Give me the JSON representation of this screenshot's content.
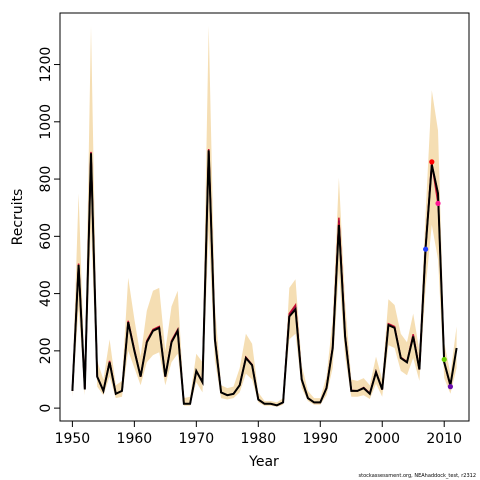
{
  "chart_data": {
    "type": "line",
    "xlabel": "Year",
    "ylabel": "Recruits",
    "credit": "stockassessment.org, NEAhaddock_test, r2312",
    "xlim": [
      1948,
      2014
    ],
    "ylim": [
      -45,
      1380
    ],
    "x_ticks": [
      1950,
      1960,
      1970,
      1980,
      1990,
      2000,
      2010
    ],
    "y_ticks": [
      0,
      200,
      400,
      600,
      800,
      1000,
      1200
    ],
    "grid": false,
    "colors": {
      "band": "#f5deb3",
      "estimate": "#000000",
      "retro": "#c8102e",
      "retro_2": "#8b0a50"
    },
    "years": [
      1950,
      1951,
      1952,
      1953,
      1954,
      1955,
      1956,
      1957,
      1958,
      1959,
      1960,
      1961,
      1962,
      1963,
      1964,
      1965,
      1966,
      1967,
      1968,
      1969,
      1970,
      1971,
      1972,
      1973,
      1974,
      1975,
      1976,
      1977,
      1978,
      1979,
      1980,
      1981,
      1982,
      1983,
      1984,
      1985,
      1986,
      1987,
      1988,
      1989,
      1990,
      1991,
      1992,
      1993,
      1994,
      1995,
      1996,
      1997,
      1998,
      1999,
      2000,
      2001,
      2002,
      2003,
      2004,
      2005,
      2006,
      2007,
      2008,
      2009,
      2010,
      2011,
      2012
    ],
    "estimate": [
      60,
      500,
      65,
      890,
      110,
      60,
      160,
      50,
      60,
      300,
      200,
      110,
      230,
      270,
      280,
      110,
      230,
      270,
      15,
      15,
      130,
      90,
      900,
      240,
      55,
      45,
      50,
      80,
      175,
      150,
      30,
      15,
      15,
      10,
      20,
      320,
      345,
      100,
      35,
      20,
      20,
      70,
      210,
      640,
      250,
      60,
      60,
      70,
      50,
      125,
      65,
      290,
      280,
      175,
      160,
      250,
      135,
      560,
      850,
      750,
      160,
      80,
      210
    ],
    "upper": [
      90,
      750,
      110,
      1335,
      165,
      100,
      240,
      80,
      95,
      455,
      310,
      180,
      340,
      410,
      420,
      200,
      355,
      410,
      35,
      40,
      190,
      160,
      1335,
      360,
      80,
      70,
      75,
      140,
      260,
      225,
      55,
      25,
      25,
      20,
      35,
      420,
      450,
      150,
      60,
      35,
      35,
      110,
      310,
      805,
      370,
      100,
      95,
      105,
      80,
      180,
      100,
      380,
      360,
      260,
      230,
      330,
      200,
      680,
      1110,
      970,
      230,
      120,
      285
    ],
    "lower": [
      40,
      350,
      45,
      630,
      75,
      45,
      110,
      35,
      40,
      200,
      140,
      80,
      160,
      185,
      195,
      80,
      160,
      190,
      8,
      8,
      90,
      55,
      620,
      165,
      35,
      30,
      35,
      55,
      120,
      100,
      20,
      8,
      8,
      5,
      12,
      240,
      260,
      70,
      25,
      12,
      12,
      45,
      140,
      480,
      180,
      40,
      40,
      45,
      32,
      85,
      40,
      220,
      210,
      130,
      115,
      175,
      95,
      420,
      640,
      520,
      105,
      50,
      140
    ],
    "retro_series": [
      {
        "x": [
          1950,
          1951,
          1952,
          1953,
          1954,
          1955,
          1956,
          1957,
          1958,
          1959,
          1960,
          1961,
          1962,
          1963,
          1964,
          1965,
          1966,
          1967,
          1968,
          1969,
          1970,
          1971,
          1972,
          1973,
          1974,
          1975,
          1976,
          1977,
          1978,
          1979,
          1980,
          1981,
          1982,
          1983,
          1984,
          1985,
          1986,
          1987,
          1988,
          1989,
          1990,
          1991,
          1992,
          1993,
          1994,
          1995,
          1996,
          1997,
          1998,
          1999,
          2000,
          2001,
          2002,
          2003,
          2004,
          2005,
          2006,
          2007
        ],
        "y": [
          60,
          505,
          65,
          895,
          110,
          60,
          165,
          50,
          60,
          305,
          205,
          110,
          235,
          275,
          285,
          110,
          235,
          275,
          15,
          15,
          130,
          90,
          905,
          245,
          55,
          45,
          50,
          80,
          178,
          152,
          30,
          15,
          15,
          10,
          20,
          330,
          360,
          100,
          35,
          20,
          20,
          72,
          215,
          665,
          255,
          62,
          60,
          72,
          52,
          128,
          66,
          295,
          285,
          178,
          162,
          258,
          138,
          555
        ],
        "end_color": "#1e3cff"
      },
      {
        "x": [
          1950,
          1951,
          1952,
          1953,
          1954,
          1955,
          1956,
          1957,
          1958,
          1959,
          1960,
          1961,
          1962,
          1963,
          1964,
          1965,
          1966,
          1967,
          1968,
          1969,
          1970,
          1971,
          1972,
          1973,
          1974,
          1975,
          1976,
          1977,
          1978,
          1979,
          1980,
          1981,
          1982,
          1983,
          1984,
          1985,
          1986,
          1987,
          1988,
          1989,
          1990,
          1991,
          1992,
          1993,
          1994,
          1995,
          1996,
          1997,
          1998,
          1999,
          2000,
          2001,
          2002,
          2003,
          2004,
          2005,
          2006,
          2007,
          2008
        ],
        "y": [
          60,
          502,
          65,
          892,
          110,
          60,
          162,
          50,
          60,
          302,
          202,
          110,
          232,
          272,
          282,
          110,
          232,
          272,
          15,
          15,
          130,
          90,
          902,
          242,
          55,
          45,
          50,
          80,
          176,
          151,
          30,
          15,
          15,
          10,
          20,
          325,
          352,
          100,
          35,
          20,
          20,
          71,
          212,
          655,
          252,
          61,
          60,
          71,
          51,
          126,
          65,
          292,
          282,
          176,
          161,
          254,
          136,
          565,
          860
        ],
        "end_color": "#ff0000"
      },
      {
        "x": [
          1950,
          1951,
          1952,
          1953,
          1954,
          1955,
          1956,
          1957,
          1958,
          1959,
          1960,
          1961,
          1962,
          1963,
          1964,
          1965,
          1966,
          1967,
          1968,
          1969,
          1970,
          1971,
          1972,
          1973,
          1974,
          1975,
          1976,
          1977,
          1978,
          1979,
          1980,
          1981,
          1982,
          1983,
          1984,
          1985,
          1986,
          1987,
          1988,
          1989,
          1990,
          1991,
          1992,
          1993,
          1994,
          1995,
          1996,
          1997,
          1998,
          1999,
          2000,
          2001,
          2002,
          2003,
          2004,
          2005,
          2006,
          2007,
          2008,
          2009
        ],
        "y": [
          60,
          501,
          65,
          891,
          110,
          60,
          161,
          50,
          60,
          301,
          201,
          110,
          231,
          271,
          281,
          110,
          231,
          271,
          15,
          15,
          130,
          90,
          901,
          241,
          55,
          45,
          50,
          80,
          175,
          150,
          30,
          15,
          15,
          10,
          20,
          322,
          348,
          100,
          35,
          20,
          20,
          70,
          211,
          648,
          251,
          60,
          60,
          70,
          50,
          125,
          65,
          291,
          281,
          175,
          160,
          252,
          135,
          562,
          855,
          715
        ],
        "end_color": "#ff1493"
      },
      {
        "x": [
          2005,
          2006,
          2007,
          2008,
          2009,
          2010
        ],
        "y": [
          250,
          135,
          560,
          850,
          750,
          170
        ],
        "end_color": "#66cc00"
      },
      {
        "x": [
          2005,
          2006,
          2007,
          2008,
          2009,
          2010,
          2011
        ],
        "y": [
          250,
          135,
          560,
          850,
          750,
          160,
          75
        ],
        "end_color": "#6a0dad"
      }
    ]
  }
}
